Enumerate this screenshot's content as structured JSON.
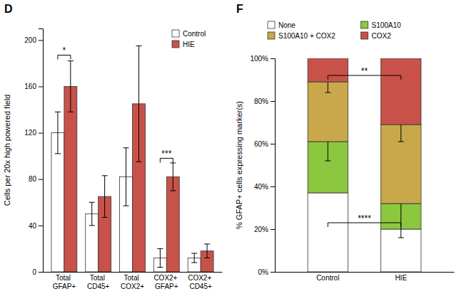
{
  "chart_data": [
    {
      "type": "bar",
      "title": "D",
      "categories": [
        "Total\nGFAP+",
        "Total\nCD45+",
        "Total\nCOX2+",
        "COX2+\nGFAP+",
        "COX2+\nCD45+"
      ],
      "series": [
        {
          "name": "Control",
          "color": "#FFFFFF",
          "values": [
            120,
            50,
            82,
            12,
            12
          ],
          "errors": [
            18,
            10,
            25,
            8,
            4
          ]
        },
        {
          "name": "HIE",
          "color": "#C8524A",
          "values": [
            160,
            65,
            145,
            82,
            18
          ],
          "errors": [
            22,
            18,
            50,
            12,
            6
          ]
        }
      ],
      "ylabel": "Cells per 20x high powered field",
      "ylim": [
        0,
        210
      ],
      "yticks": [
        0,
        40,
        80,
        120,
        160,
        200
      ],
      "grid": false,
      "legend": "upper right",
      "annotations": [
        {
          "text": "*",
          "category": "Total\nGFAP+",
          "y": 187
        },
        {
          "text": "***",
          "category": "COX2+\nGFAP+",
          "y": 98
        }
      ]
    },
    {
      "type": "bar",
      "title": "F",
      "stacked": true,
      "categories": [
        "Control",
        "HIE"
      ],
      "series": [
        {
          "name": "None",
          "color": "#FFFFFF",
          "values": [
            37,
            20
          ]
        },
        {
          "name": "S100A10",
          "color": "#8DC63F",
          "values": [
            24,
            12
          ],
          "errors": [
            9,
            16
          ]
        },
        {
          "name": "S100A10 + COX2",
          "color": "#C8A84B",
          "values": [
            28,
            37
          ],
          "errors": [
            5,
            8
          ]
        },
        {
          "name": "COX2",
          "color": "#C8524A",
          "values": [
            11,
            31
          ]
        }
      ],
      "ylabel": "% GFAP+ cells expressing marker(s)",
      "ylim": [
        0,
        100
      ],
      "yticks": [
        {
          "value": 0,
          "label": "0%"
        },
        {
          "value": 20,
          "label": "20%"
        },
        {
          "value": 40,
          "label": "40%"
        },
        {
          "value": 60,
          "label": "60%"
        },
        {
          "value": 80,
          "label": "80%"
        },
        {
          "value": 100,
          "label": "100%"
        }
      ],
      "grid": false,
      "legend": "top",
      "annotations": [
        {
          "text": "**",
          "between": [
            "Control",
            "HIE"
          ],
          "y": 92
        },
        {
          "text": "****",
          "between": [
            "Control",
            "HIE"
          ],
          "y": 23
        }
      ]
    }
  ]
}
